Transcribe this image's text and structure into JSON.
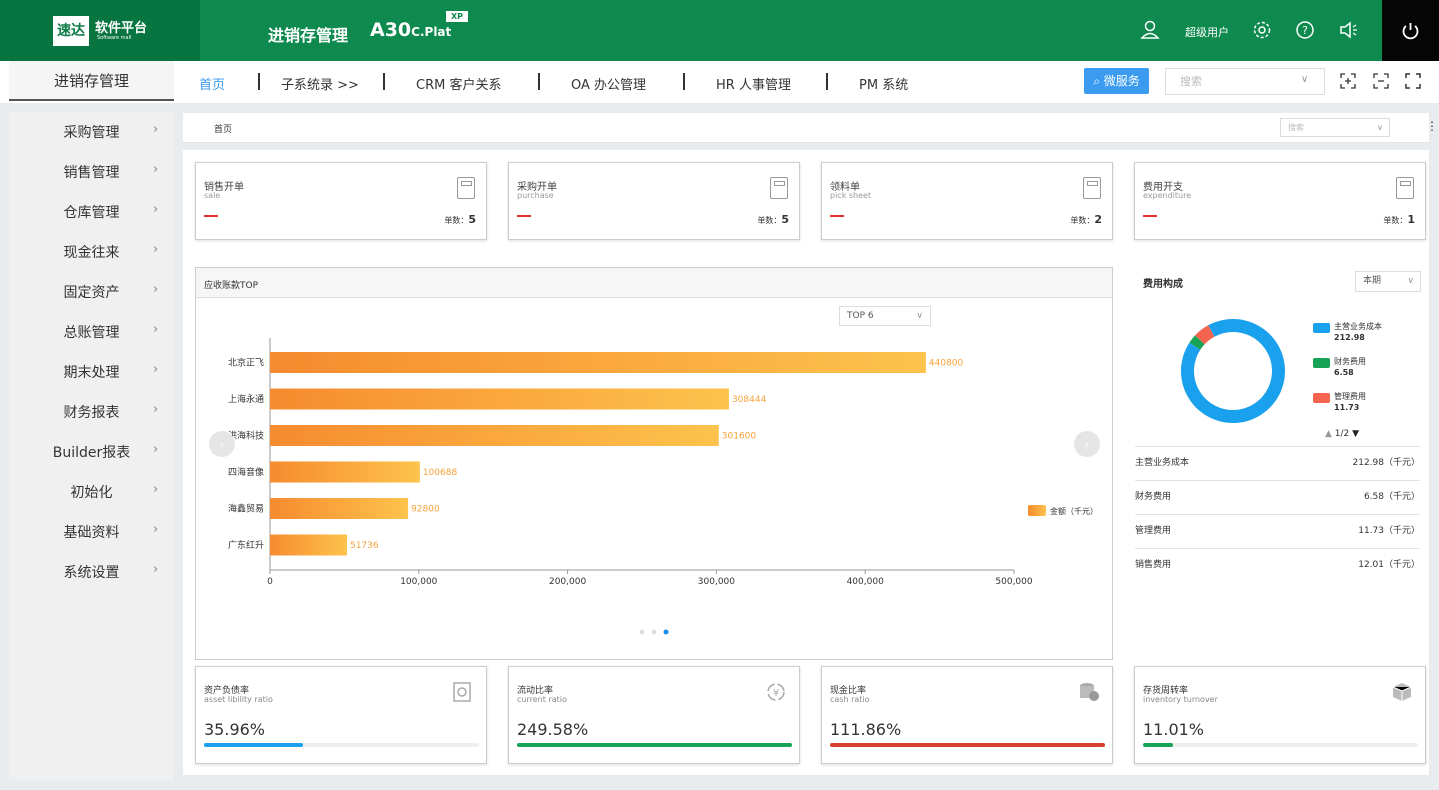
{
  "header": {
    "logo_mark": "速达",
    "logo_title": "软件平台",
    "logo_sub": "Software mall",
    "app_title": "进销存管理",
    "product_main": "A30",
    "product_small": "C.Plat",
    "product_badge": "XP",
    "username": "超级用户"
  },
  "nav": {
    "side_title": "进销存管理",
    "tabs": [
      "首页",
      "子系统录 >>",
      "CRM 客户关系",
      "OA 办公管理",
      "HR 人事管理",
      "PM 系统"
    ],
    "service_label": "微服务",
    "search_placeholder": "搜索"
  },
  "sidebar": {
    "items": [
      "采购管理",
      "销售管理",
      "仓库管理",
      "现金往来",
      "固定资产",
      "总账管理",
      "期末处理",
      "财务报表",
      "Builder报表",
      "初始化",
      "基础资料",
      "系统设置"
    ]
  },
  "breadcrumb": {
    "home": "首页",
    "search_placeholder": "搜索"
  },
  "cards": [
    {
      "title": "销售开单",
      "sub": "sale",
      "count_label": "单数：",
      "count": "5"
    },
    {
      "title": "采购开单",
      "sub": "purchase",
      "count_label": "单数：",
      "count": "5"
    },
    {
      "title": "领料单",
      "sub": "pick sheet",
      "count_label": "单数：",
      "count": "2"
    },
    {
      "title": "费用开支",
      "sub": "expenditure",
      "count_label": "单数：",
      "count": "1"
    }
  ],
  "receivables": {
    "title": "应收账款TOP",
    "selector": "TOP 6",
    "legend": "金额（千元）"
  },
  "chart_data": {
    "type": "bar",
    "orientation": "horizontal",
    "categories": [
      "北京正飞",
      "上海永通",
      "洪海科技",
      "四海音像",
      "海鑫贸易",
      "广东红升"
    ],
    "values": [
      440800,
      308444,
      301600,
      100688,
      92800,
      51736
    ],
    "xlim": [
      0,
      500000
    ],
    "xticks": [
      "0",
      "100,000",
      "200,000",
      "300,000",
      "400,000",
      "500,000"
    ],
    "series_name": "金额（千元）",
    "color": "#f8a23b"
  },
  "expense": {
    "title": "费用构成",
    "period": "本期",
    "donut": [
      {
        "name": "主营业务成本",
        "value": "212.98",
        "color": "#1aa1ee"
      },
      {
        "name": "财务费用",
        "value": "6.58",
        "color": "#17a355"
      },
      {
        "name": "管理费用",
        "value": "11.73",
        "color": "#f4644e"
      }
    ],
    "pager": "1/2",
    "rows": [
      {
        "k": "主营业务成本",
        "v": "212.98（千元）"
      },
      {
        "k": "财务费用",
        "v": "6.58（千元）"
      },
      {
        "k": "管理费用",
        "v": "11.73（千元）"
      },
      {
        "k": "销售费用",
        "v": "12.01（千元）"
      }
    ]
  },
  "ratios": [
    {
      "title": "资产负债率",
      "sub": "asset libility ratio",
      "value": "35.96%",
      "fraction": 0.3596,
      "color": "#1aa1ee"
    },
    {
      "title": "流动比率",
      "sub": "current ratio",
      "value": "249.58%",
      "fraction": 1.0,
      "color": "#17a355"
    },
    {
      "title": "现金比率",
      "sub": "cash ratio",
      "value": "111.86%",
      "fraction": 1.0,
      "color": "#d7402e"
    },
    {
      "title": "存货周转率",
      "sub": "inventory turnover",
      "value": "11.01%",
      "fraction": 0.1101,
      "color": "#17a355"
    }
  ]
}
